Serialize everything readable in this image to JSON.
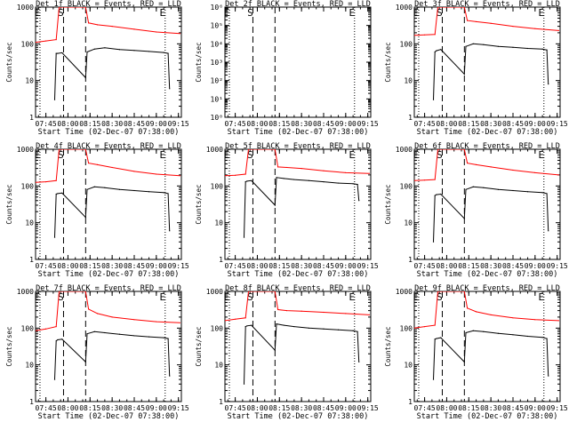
{
  "chart_data": [
    {
      "type": "line",
      "title": "Det 1f BLACK = Events, RED = LLD",
      "xlabel": "Start Time (02-Dec-07 07:38:00)",
      "ylabel": "Counts/sec",
      "yscale": "log",
      "ylim": [
        1,
        1000
      ],
      "ytick_labels": [
        "1",
        "10",
        "100",
        "1000"
      ],
      "xlim": [
        "07:38",
        "09:17"
      ],
      "xtick_labels": [
        "07:45",
        "08:00",
        "08:15",
        "08:30",
        "08:45",
        "09:00",
        "09:15"
      ],
      "markers": [
        {
          "label": "E",
          "time": "07:41",
          "style": "dotted"
        },
        {
          "label": "S",
          "time": "07:57",
          "style": "dashed"
        },
        {
          "label": "",
          "time": "08:12",
          "style": "dashed"
        },
        {
          "label": "E",
          "time": "09:06",
          "style": "dotted"
        }
      ],
      "series": [
        {
          "color": "#000000",
          "x": [
            "07:51",
            "07:52",
            "07:53",
            "07:56",
            "08:12",
            "08:13",
            "08:18",
            "08:25",
            "08:35",
            "08:45",
            "08:55",
            "09:05",
            "09:08",
            "09:09"
          ],
          "values": [
            3,
            55,
            55,
            57,
            12,
            60,
            72,
            78,
            70,
            66,
            62,
            58,
            55,
            6
          ]
        },
        {
          "color": "#ff0000",
          "x": [
            "07:38",
            "07:45",
            "07:52",
            "07:54",
            "07:56",
            "08:12",
            "08:14",
            "08:20",
            "08:30",
            "08:45",
            "09:00",
            "09:16"
          ],
          "values": [
            110,
            120,
            130,
            1000,
            1000,
            1000,
            370,
            330,
            300,
            250,
            210,
            190
          ]
        }
      ]
    },
    {
      "type": "line",
      "title": "Det 2f BLACK = Events, RED = LLD",
      "xlabel": "Start Time (02-Dec-07 07:38:00)",
      "ylabel": "Counts/sec",
      "yscale": "log",
      "ylim": [
        1,
        1000000
      ],
      "ytick_labels": [
        "10⁰",
        "10¹",
        "10²",
        "10³",
        "10⁴",
        "10⁵",
        "10⁶"
      ],
      "xlim": [
        "07:38",
        "09:17"
      ],
      "xtick_labels": [
        "07:45",
        "08:00",
        "08:15",
        "08:30",
        "08:45",
        "09:00",
        "09:15"
      ],
      "markers": [
        {
          "label": "E",
          "time": "07:41",
          "style": "dotted"
        },
        {
          "label": "S",
          "time": "07:57",
          "style": "dashed"
        },
        {
          "label": "",
          "time": "08:12",
          "style": "dashed"
        },
        {
          "label": "E",
          "time": "09:06",
          "style": "dotted"
        }
      ],
      "series": []
    },
    {
      "type": "line",
      "title": "Det 3f BLACK = Events, RED = LLD",
      "xlabel": "Start Time (02-Dec-07 07:38:00)",
      "ylabel": "Counts/sec",
      "yscale": "log",
      "ylim": [
        1,
        1000
      ],
      "ytick_labels": [
        "1",
        "10",
        "100",
        "1000"
      ],
      "xlim": [
        "07:38",
        "09:17"
      ],
      "xtick_labels": [
        "07:45",
        "08:00",
        "08:15",
        "08:30",
        "08:45",
        "09:00",
        "09:15"
      ],
      "markers": [
        {
          "label": "E",
          "time": "07:41",
          "style": "dotted"
        },
        {
          "label": "S",
          "time": "07:57",
          "style": "dashed"
        },
        {
          "label": "",
          "time": "08:12",
          "style": "dashed"
        },
        {
          "label": "E",
          "time": "09:06",
          "style": "dotted"
        }
      ],
      "series": [
        {
          "color": "#000000",
          "x": [
            "07:51",
            "07:52",
            "07:53",
            "07:56",
            "08:12",
            "08:13",
            "08:18",
            "08:25",
            "08:35",
            "08:45",
            "08:55",
            "09:05",
            "09:08",
            "09:09"
          ],
          "values": [
            3,
            60,
            65,
            70,
            15,
            85,
            100,
            95,
            85,
            80,
            75,
            72,
            68,
            8
          ]
        },
        {
          "color": "#ff0000",
          "x": [
            "07:38",
            "07:45",
            "07:52",
            "07:54",
            "07:56",
            "08:12",
            "08:14",
            "08:20",
            "08:30",
            "08:45",
            "09:00",
            "09:16"
          ],
          "values": [
            170,
            175,
            180,
            1000,
            1000,
            1000,
            430,
            400,
            360,
            300,
            260,
            230
          ]
        }
      ]
    },
    {
      "type": "line",
      "title": "Det 4f BLACK = Events, RED = LLD",
      "xlabel": "Start Time (02-Dec-07 07:38:00)",
      "ylabel": "Counts/sec",
      "yscale": "log",
      "ylim": [
        1,
        1000
      ],
      "ytick_labels": [
        "1",
        "10",
        "100",
        "1000"
      ],
      "xlim": [
        "07:38",
        "09:17"
      ],
      "xtick_labels": [
        "07:45",
        "08:00",
        "08:15",
        "08:30",
        "08:45",
        "09:00",
        "09:15"
      ],
      "markers": [
        {
          "label": "E",
          "time": "07:41",
          "style": "dotted"
        },
        {
          "label": "S",
          "time": "07:57",
          "style": "dashed"
        },
        {
          "label": "",
          "time": "08:12",
          "style": "dashed"
        },
        {
          "label": "E",
          "time": "09:06",
          "style": "dotted"
        }
      ],
      "series": [
        {
          "color": "#000000",
          "x": [
            "07:51",
            "07:52",
            "07:53",
            "07:56",
            "08:12",
            "08:13",
            "08:18",
            "08:25",
            "08:35",
            "08:45",
            "08:55",
            "09:05",
            "09:08",
            "09:09"
          ],
          "values": [
            4,
            60,
            62,
            64,
            14,
            80,
            95,
            90,
            80,
            75,
            70,
            66,
            62,
            6
          ]
        },
        {
          "color": "#ff0000",
          "x": [
            "07:38",
            "07:45",
            "07:52",
            "07:54",
            "07:56",
            "08:12",
            "08:14",
            "08:20",
            "08:30",
            "08:45",
            "09:00",
            "09:16"
          ],
          "values": [
            125,
            130,
            140,
            1000,
            1000,
            1000,
            420,
            380,
            320,
            250,
            210,
            190
          ]
        }
      ]
    },
    {
      "type": "line",
      "title": "Det 5f BLACK = Events, RED = LLD",
      "xlabel": "Start Time (02-Dec-07 07:38:00)",
      "ylabel": "Counts/sec",
      "yscale": "log",
      "ylim": [
        1,
        1000
      ],
      "ytick_labels": [
        "1",
        "10",
        "100",
        "1000"
      ],
      "xlim": [
        "07:38",
        "09:17"
      ],
      "xtick_labels": [
        "07:45",
        "08:00",
        "08:15",
        "08:30",
        "08:45",
        "09:00",
        "09:15"
      ],
      "markers": [
        {
          "label": "E",
          "time": "07:41",
          "style": "dotted"
        },
        {
          "label": "S",
          "time": "07:57",
          "style": "dashed"
        },
        {
          "label": "",
          "time": "08:12",
          "style": "dashed"
        },
        {
          "label": "E",
          "time": "09:06",
          "style": "dotted"
        }
      ],
      "series": [
        {
          "color": "#000000",
          "x": [
            "07:51",
            "07:52",
            "07:53",
            "07:56",
            "08:12",
            "08:13",
            "08:18",
            "08:25",
            "08:35",
            "08:45",
            "08:55",
            "09:05",
            "09:08",
            "09:09"
          ],
          "values": [
            4,
            130,
            135,
            140,
            30,
            170,
            160,
            150,
            140,
            130,
            120,
            115,
            110,
            40
          ]
        },
        {
          "color": "#ff0000",
          "x": [
            "07:38",
            "07:45",
            "07:52",
            "07:54",
            "07:56",
            "08:12",
            "08:14",
            "08:20",
            "08:30",
            "08:45",
            "09:00",
            "09:16"
          ],
          "values": [
            190,
            195,
            210,
            1000,
            1000,
            1000,
            330,
            320,
            300,
            260,
            230,
            220
          ]
        }
      ]
    },
    {
      "type": "line",
      "title": "Det 6f BLACK = Events, RED = LLD",
      "xlabel": "Start Time (02-Dec-07 07:38:00)",
      "ylabel": "Counts/sec",
      "yscale": "log",
      "ylim": [
        1,
        1000
      ],
      "ytick_labels": [
        "1",
        "10",
        "100",
        "1000"
      ],
      "xlim": [
        "07:38",
        "09:17"
      ],
      "xtick_labels": [
        "07:45",
        "08:00",
        "08:15",
        "08:30",
        "08:45",
        "09:00",
        "09:15"
      ],
      "markers": [
        {
          "label": "E",
          "time": "07:41",
          "style": "dotted"
        },
        {
          "label": "S",
          "time": "07:57",
          "style": "dashed"
        },
        {
          "label": "",
          "time": "08:12",
          "style": "dashed"
        },
        {
          "label": "E",
          "time": "09:06",
          "style": "dotted"
        }
      ],
      "series": [
        {
          "color": "#000000",
          "x": [
            "07:51",
            "07:52",
            "07:53",
            "07:56",
            "08:12",
            "08:13",
            "08:18",
            "08:25",
            "08:35",
            "08:45",
            "08:55",
            "09:05",
            "09:08",
            "09:09"
          ],
          "values": [
            3,
            55,
            58,
            60,
            13,
            80,
            95,
            90,
            80,
            75,
            70,
            66,
            62,
            6
          ]
        },
        {
          "color": "#ff0000",
          "x": [
            "07:38",
            "07:45",
            "07:52",
            "07:54",
            "07:56",
            "08:12",
            "08:14",
            "08:20",
            "08:30",
            "08:45",
            "09:00",
            "09:16"
          ],
          "values": [
            140,
            145,
            150,
            1000,
            1000,
            1000,
            420,
            380,
            330,
            270,
            230,
            200
          ]
        }
      ]
    },
    {
      "type": "line",
      "title": "Det 7f BLACK = Events, RED = LLD",
      "xlabel": "Start Time (02-Dec-07 07:38:00)",
      "ylabel": "Counts/sec",
      "yscale": "log",
      "ylim": [
        1,
        1000
      ],
      "ytick_labels": [
        "1",
        "10",
        "100",
        "1000"
      ],
      "xlim": [
        "07:38",
        "09:17"
      ],
      "xtick_labels": [
        "07:45",
        "08:00",
        "08:15",
        "08:30",
        "08:45",
        "09:00",
        "09:15"
      ],
      "markers": [
        {
          "label": "E",
          "time": "07:41",
          "style": "dotted"
        },
        {
          "label": "S",
          "time": "07:57",
          "style": "dashed"
        },
        {
          "label": "",
          "time": "08:12",
          "style": "dashed"
        },
        {
          "label": "E",
          "time": "09:06",
          "style": "dotted"
        }
      ],
      "series": [
        {
          "color": "#000000",
          "x": [
            "07:51",
            "07:52",
            "07:53",
            "07:56",
            "08:12",
            "08:13",
            "08:18",
            "08:25",
            "08:35",
            "08:45",
            "08:55",
            "09:05",
            "09:08",
            "09:09"
          ],
          "values": [
            4,
            45,
            48,
            50,
            12,
            70,
            80,
            75,
            68,
            62,
            58,
            55,
            52,
            5
          ]
        },
        {
          "color": "#ff0000",
          "x": [
            "07:38",
            "07:45",
            "07:52",
            "07:54",
            "07:56",
            "08:12",
            "08:14",
            "08:20",
            "08:30",
            "08:45",
            "09:00",
            "09:16"
          ],
          "values": [
            85,
            95,
            110,
            1000,
            1000,
            1000,
            330,
            250,
            200,
            170,
            150,
            140
          ]
        }
      ]
    },
    {
      "type": "line",
      "title": "Det 8f BLACK = Events, RED = LLD",
      "xlabel": "Start Time (02-Dec-07 07:38:00)",
      "ylabel": "Counts/sec",
      "yscale": "log",
      "ylim": [
        1,
        1000
      ],
      "ytick_labels": [
        "1",
        "10",
        "100",
        "1000"
      ],
      "xlim": [
        "07:38",
        "09:17"
      ],
      "xtick_labels": [
        "07:45",
        "08:00",
        "08:15",
        "08:30",
        "08:45",
        "09:00",
        "09:15"
      ],
      "markers": [
        {
          "label": "E",
          "time": "07:41",
          "style": "dotted"
        },
        {
          "label": "S",
          "time": "07:57",
          "style": "dashed"
        },
        {
          "label": "",
          "time": "08:12",
          "style": "dashed"
        },
        {
          "label": "E",
          "time": "09:06",
          "style": "dotted"
        }
      ],
      "series": [
        {
          "color": "#000000",
          "x": [
            "07:51",
            "07:52",
            "07:53",
            "07:56",
            "08:12",
            "08:13",
            "08:18",
            "08:25",
            "08:35",
            "08:45",
            "08:55",
            "09:05",
            "09:08",
            "09:09"
          ],
          "values": [
            3,
            110,
            115,
            120,
            25,
            130,
            120,
            110,
            100,
            95,
            90,
            85,
            80,
            12
          ]
        },
        {
          "color": "#ff0000",
          "x": [
            "07:38",
            "07:45",
            "07:52",
            "07:54",
            "07:56",
            "08:12",
            "08:14",
            "08:20",
            "08:30",
            "08:45",
            "09:00",
            "09:16"
          ],
          "values": [
            160,
            175,
            190,
            1000,
            1000,
            1000,
            320,
            300,
            290,
            270,
            250,
            230
          ]
        }
      ]
    },
    {
      "type": "line",
      "title": "Det 9f BLACK = Events, RED = LLD",
      "xlabel": "Start Time (02-Dec-07 07:38:00)",
      "ylabel": "Counts/sec",
      "yscale": "log",
      "ylim": [
        1,
        1000
      ],
      "ytick_labels": [
        "1",
        "10",
        "100",
        "1000"
      ],
      "xlim": [
        "07:38",
        "09:17"
      ],
      "xtick_labels": [
        "07:45",
        "08:00",
        "08:15",
        "08:30",
        "08:45",
        "09:00",
        "09:15"
      ],
      "markers": [
        {
          "label": "E",
          "time": "07:41",
          "style": "dotted"
        },
        {
          "label": "S",
          "time": "07:57",
          "style": "dashed"
        },
        {
          "label": "",
          "time": "08:12",
          "style": "dashed"
        },
        {
          "label": "E",
          "time": "09:06",
          "style": "dotted"
        }
      ],
      "series": [
        {
          "color": "#000000",
          "x": [
            "07:51",
            "07:52",
            "07:53",
            "07:56",
            "08:12",
            "08:13",
            "08:18",
            "08:25",
            "08:35",
            "08:45",
            "08:55",
            "09:05",
            "09:08",
            "09:09"
          ],
          "values": [
            4,
            50,
            52,
            55,
            12,
            75,
            85,
            80,
            72,
            66,
            60,
            56,
            52,
            5
          ]
        },
        {
          "color": "#ff0000",
          "x": [
            "07:38",
            "07:45",
            "07:52",
            "07:54",
            "07:56",
            "08:12",
            "08:14",
            "08:20",
            "08:30",
            "08:45",
            "09:00",
            "09:16"
          ],
          "values": [
            100,
            110,
            120,
            1000,
            1000,
            1000,
            350,
            280,
            230,
            190,
            170,
            160
          ]
        }
      ]
    }
  ]
}
